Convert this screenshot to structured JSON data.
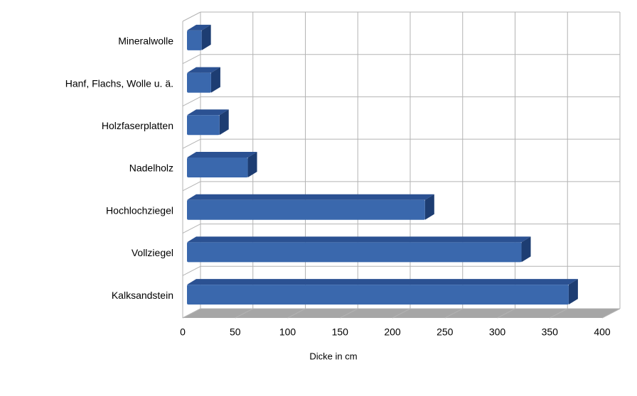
{
  "chart_data": {
    "type": "bar3d_horizontal",
    "x_label": "Dicke in cm",
    "categories": [
      "Mineralwolle",
      "Hanf, Flachs, Wolle u. ä.",
      "Holzfaserplatten",
      "Nadelholz",
      "Hochlochziegel",
      "Vollziegel",
      "Kalksandstein"
    ],
    "values": [
      14,
      23,
      31,
      58,
      227,
      319,
      364
    ],
    "color": "#3a68ad",
    "xlim": [
      0,
      400
    ],
    "xticks": [
      0,
      50,
      100,
      150,
      200,
      250,
      300,
      350,
      400
    ],
    "grid": true
  }
}
